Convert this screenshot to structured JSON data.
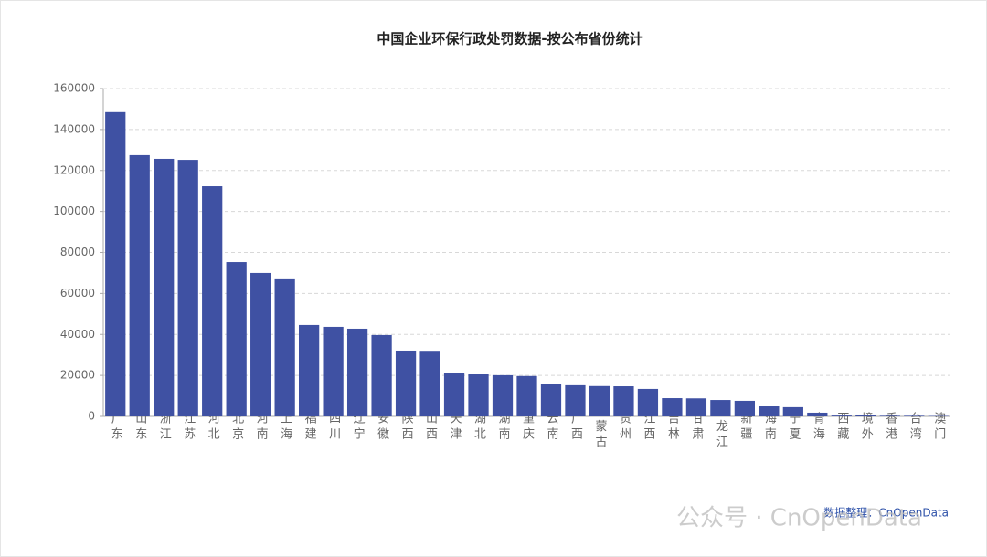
{
  "chart_data": {
    "type": "bar",
    "title": "中国企业环保行政处罚数据-按公布省份统计",
    "categories": [
      "广东",
      "山东",
      "浙江",
      "江苏",
      "河北",
      "北京",
      "河南",
      "上海",
      "福建",
      "四川",
      "辽宁",
      "安徽",
      "陕西",
      "山西",
      "天津",
      "湖北",
      "湖南",
      "重庆",
      "云南",
      "广西",
      "内蒙古",
      "贵州",
      "江西",
      "吉林",
      "甘肃",
      "黑龙江",
      "新疆",
      "海南",
      "宁夏",
      "青海",
      "西藏",
      "境外",
      "香港",
      "台湾",
      "澳门"
    ],
    "values": [
      148500,
      127500,
      125700,
      125200,
      112300,
      75300,
      70000,
      66900,
      44600,
      43700,
      42800,
      39700,
      32100,
      32000,
      21000,
      20500,
      20100,
      19700,
      15600,
      15200,
      14800,
      14700,
      13400,
      8900,
      8800,
      8000,
      7600,
      4900,
      4500,
      1800,
      400,
      600,
      300,
      300,
      200
    ],
    "color": "#3f51a3",
    "ylim": [
      0,
      160000
    ],
    "yticks": [
      0,
      20000,
      40000,
      60000,
      80000,
      100000,
      120000,
      140000,
      160000
    ],
    "grid": true
  },
  "source": "数据整理：CnOpenData",
  "watermark": "公众号 · CnOpenData"
}
